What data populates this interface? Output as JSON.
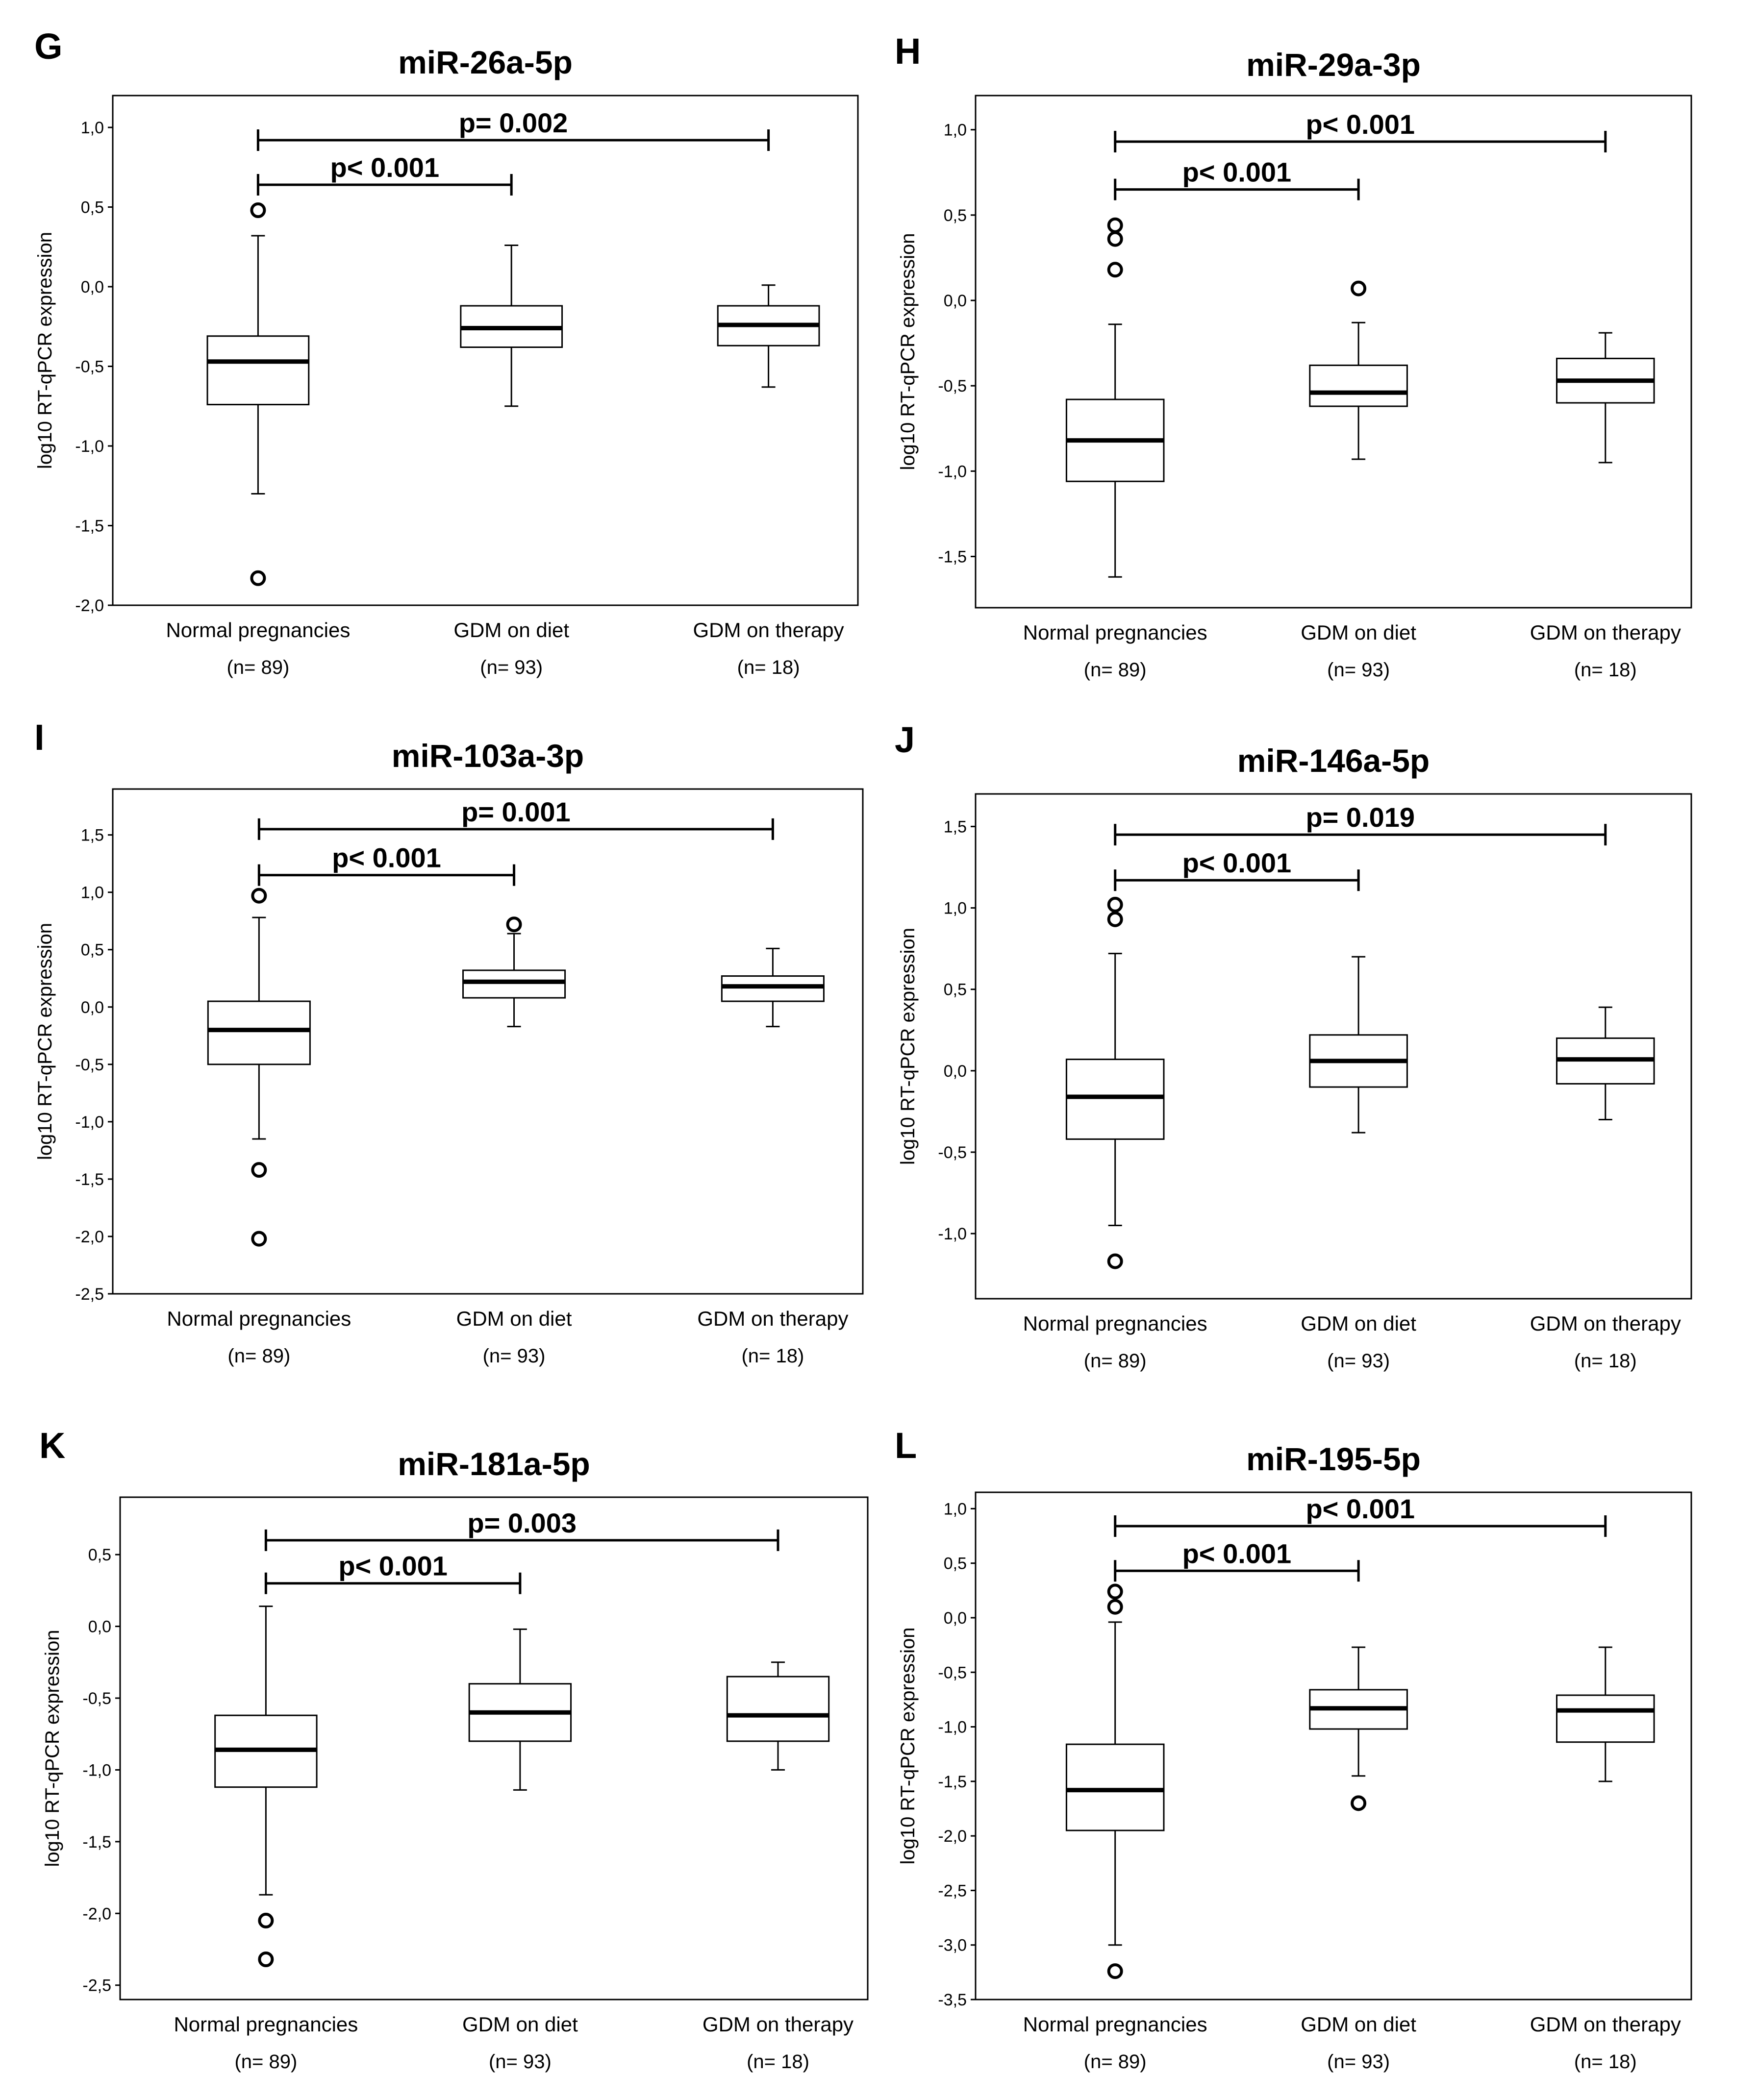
{
  "figure": {
    "group_labels": [
      "Normal pregnancies",
      "GDM on diet",
      "GDM on therapy"
    ],
    "group_ns": [
      "(n= 89)",
      "(n= 93)",
      "(n= 18)"
    ],
    "ylabel": "log10 RT-qPCR expression"
  },
  "chart_data": [
    {
      "panel": "G",
      "type": "boxplot",
      "title": "miR-26a-5p",
      "ylabel": "log10 RT-qPCR expression",
      "categories": [
        "Normal pregnancies",
        "GDM on diet",
        "GDM on therapy"
      ],
      "n_labels": [
        "(n= 89)",
        "(n= 93)",
        "(n= 18)"
      ],
      "ylim": [
        -2.0,
        1.2
      ],
      "ticks": [
        -2.0,
        -1.5,
        -1.0,
        -0.5,
        0.0,
        0.5,
        1.0
      ],
      "tick_labels": [
        "-2,0",
        "-1,5",
        "-1,0",
        "-0,5",
        "0,0",
        "0,5",
        "1,0"
      ],
      "boxes": [
        {
          "whisker_low": -1.3,
          "q1": -0.74,
          "median": -0.47,
          "q3": -0.31,
          "whisker_high": 0.32,
          "outliers": [
            0.48,
            -1.83
          ]
        },
        {
          "whisker_low": -0.75,
          "q1": -0.38,
          "median": -0.26,
          "q3": -0.12,
          "whisker_high": 0.26,
          "outliers": []
        },
        {
          "whisker_low": -0.63,
          "q1": -0.37,
          "median": -0.24,
          "q3": -0.12,
          "whisker_high": 0.01,
          "outliers": []
        }
      ],
      "comparisons": [
        {
          "from": 0,
          "to": 2,
          "label": "p= 0.002",
          "y": 0.92
        },
        {
          "from": 0,
          "to": 1,
          "label": "p< 0.001",
          "y": 0.64
        }
      ]
    },
    {
      "panel": "H",
      "type": "boxplot",
      "title": "miR-29a-3p",
      "ylabel": "log10 RT-qPCR expression",
      "categories": [
        "Normal pregnancies",
        "GDM on diet",
        "GDM on therapy"
      ],
      "n_labels": [
        "(n= 89)",
        "(n= 93)",
        "(n= 18)"
      ],
      "ylim": [
        -1.8,
        1.2
      ],
      "ticks": [
        -1.5,
        -1.0,
        -0.5,
        0.0,
        0.5,
        1.0
      ],
      "tick_labels": [
        "-1,5",
        "-1,0",
        "-0,5",
        "0,0",
        "0,5",
        "1,0"
      ],
      "boxes": [
        {
          "whisker_low": -1.62,
          "q1": -1.06,
          "median": -0.82,
          "q3": -0.58,
          "whisker_high": -0.14,
          "outliers": [
            0.44,
            0.36,
            0.18
          ]
        },
        {
          "whisker_low": -0.93,
          "q1": -0.62,
          "median": -0.54,
          "q3": -0.38,
          "whisker_high": -0.13,
          "outliers": [
            0.07
          ]
        },
        {
          "whisker_low": -0.95,
          "q1": -0.6,
          "median": -0.47,
          "q3": -0.34,
          "whisker_high": -0.19,
          "outliers": []
        }
      ],
      "comparisons": [
        {
          "from": 0,
          "to": 2,
          "label": "p< 0.001",
          "y": 0.93
        },
        {
          "from": 0,
          "to": 1,
          "label": "p< 0.001",
          "y": 0.65
        }
      ]
    },
    {
      "panel": "I",
      "type": "boxplot",
      "title": "miR-103a-3p",
      "ylabel": "log10 RT-qPCR expression",
      "categories": [
        "Normal pregnancies",
        "GDM on diet",
        "GDM on therapy"
      ],
      "n_labels": [
        "(n= 89)",
        "(n= 93)",
        "(n= 18)"
      ],
      "ylim": [
        -2.5,
        1.9
      ],
      "ticks": [
        -2.5,
        -2.0,
        -1.5,
        -1.0,
        -0.5,
        0.0,
        0.5,
        1.0,
        1.5
      ],
      "tick_labels": [
        "-2,5",
        "-2,0",
        "-1,5",
        "-1,0",
        "-0,5",
        "0,0",
        "0,5",
        "1,0",
        "1,5"
      ],
      "boxes": [
        {
          "whisker_low": -1.15,
          "q1": -0.5,
          "median": -0.2,
          "q3": 0.05,
          "whisker_high": 0.78,
          "outliers": [
            0.97,
            -1.42,
            -2.02
          ]
        },
        {
          "whisker_low": -0.17,
          "q1": 0.08,
          "median": 0.22,
          "q3": 0.32,
          "whisker_high": 0.64,
          "outliers": [
            0.72
          ]
        },
        {
          "whisker_low": -0.17,
          "q1": 0.05,
          "median": 0.18,
          "q3": 0.27,
          "whisker_high": 0.51,
          "outliers": []
        }
      ],
      "comparisons": [
        {
          "from": 0,
          "to": 2,
          "label": "p= 0.001",
          "y": 1.55
        },
        {
          "from": 0,
          "to": 1,
          "label": "p< 0.001",
          "y": 1.15
        }
      ]
    },
    {
      "panel": "J",
      "type": "boxplot",
      "title": "miR-146a-5p",
      "ylabel": "log10 RT-qPCR expression",
      "categories": [
        "Normal pregnancies",
        "GDM on diet",
        "GDM on therapy"
      ],
      "n_labels": [
        "(n= 89)",
        "(n= 93)",
        "(n= 18)"
      ],
      "ylim": [
        -1.4,
        1.7
      ],
      "ticks": [
        -1.0,
        -0.5,
        0.0,
        0.5,
        1.0,
        1.5
      ],
      "tick_labels": [
        "-1,0",
        "-0,5",
        "0,0",
        "0,5",
        "1,0",
        "1,5"
      ],
      "boxes": [
        {
          "whisker_low": -0.95,
          "q1": -0.42,
          "median": -0.16,
          "q3": 0.07,
          "whisker_high": 0.72,
          "outliers": [
            1.02,
            0.93,
            -1.17
          ]
        },
        {
          "whisker_low": -0.38,
          "q1": -0.1,
          "median": 0.06,
          "q3": 0.22,
          "whisker_high": 0.7,
          "outliers": []
        },
        {
          "whisker_low": -0.3,
          "q1": -0.08,
          "median": 0.07,
          "q3": 0.2,
          "whisker_high": 0.39,
          "outliers": []
        }
      ],
      "comparisons": [
        {
          "from": 0,
          "to": 2,
          "label": "p= 0.019",
          "y": 1.45
        },
        {
          "from": 0,
          "to": 1,
          "label": "p< 0.001",
          "y": 1.17
        }
      ]
    },
    {
      "panel": "K",
      "type": "boxplot",
      "title": "miR-181a-5p",
      "ylabel": "log10 RT-qPCR expression",
      "categories": [
        "Normal pregnancies",
        "GDM on diet",
        "GDM on therapy"
      ],
      "n_labels": [
        "(n= 89)",
        "(n= 93)",
        "(n= 18)"
      ],
      "ylim": [
        -2.6,
        0.9
      ],
      "ticks": [
        -2.5,
        -2.0,
        -1.5,
        -1.0,
        -0.5,
        0.0,
        0.5
      ],
      "tick_labels": [
        "-2,5",
        "-2,0",
        "-1,5",
        "-1,0",
        "-0,5",
        "0,0",
        "0,5"
      ],
      "boxes": [
        {
          "whisker_low": -1.87,
          "q1": -1.12,
          "median": -0.86,
          "q3": -0.62,
          "whisker_high": 0.14,
          "outliers": [
            -2.05,
            -2.32
          ]
        },
        {
          "whisker_low": -1.14,
          "q1": -0.8,
          "median": -0.6,
          "q3": -0.4,
          "whisker_high": -0.02,
          "outliers": []
        },
        {
          "whisker_low": -1.0,
          "q1": -0.8,
          "median": -0.62,
          "q3": -0.35,
          "whisker_high": -0.25,
          "outliers": []
        }
      ],
      "comparisons": [
        {
          "from": 0,
          "to": 2,
          "label": "p= 0.003",
          "y": 0.6
        },
        {
          "from": 0,
          "to": 1,
          "label": "p< 0.001",
          "y": 0.3
        }
      ]
    },
    {
      "panel": "L",
      "type": "boxplot",
      "title": "miR-195-5p",
      "ylabel": "log10 RT-qPCR expression",
      "categories": [
        "Normal pregnancies",
        "GDM on diet",
        "GDM on therapy"
      ],
      "n_labels": [
        "(n= 89)",
        "(n= 93)",
        "(n= 18)"
      ],
      "ylim": [
        -3.5,
        1.15
      ],
      "ticks": [
        -3.5,
        -3.0,
        -2.5,
        -2.0,
        -1.5,
        -1.0,
        -0.5,
        0.0,
        0.5,
        1.0
      ],
      "tick_labels": [
        "-3,5",
        "-3,0",
        "-2,5",
        "-2,0",
        "-1,5",
        "-1,0",
        "-0,5",
        "0,0",
        "0,5",
        "1,0"
      ],
      "boxes": [
        {
          "whisker_low": -3.0,
          "q1": -1.95,
          "median": -1.58,
          "q3": -1.16,
          "whisker_high": -0.04,
          "outliers": [
            0.24,
            0.1,
            -3.24
          ]
        },
        {
          "whisker_low": -1.45,
          "q1": -1.02,
          "median": -0.83,
          "q3": -0.66,
          "whisker_high": -0.27,
          "outliers": [
            -1.7
          ]
        },
        {
          "whisker_low": -1.5,
          "q1": -1.14,
          "median": -0.85,
          "q3": -0.71,
          "whisker_high": -0.27,
          "outliers": []
        }
      ],
      "comparisons": [
        {
          "from": 0,
          "to": 2,
          "label": "p< 0.001",
          "y": 0.84
        },
        {
          "from": 0,
          "to": 1,
          "label": "p< 0.001",
          "y": 0.43
        }
      ]
    }
  ]
}
